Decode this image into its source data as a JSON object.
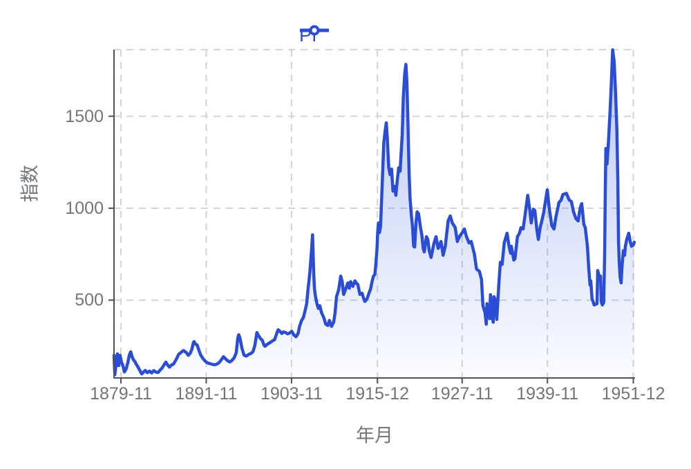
{
  "legend": {
    "label": "PI"
  },
  "colors": {
    "line": "#2B4DD6",
    "legend_text": "#2B4DD6",
    "area_top": "rgba(62,100,226,0.36)",
    "area_bottom": "rgba(62,100,226,0.02)",
    "grid": "#D3D4D6",
    "axis": "#4E5158",
    "tick_text": "#71757A",
    "background": "#FFFFFF"
  },
  "chart_data": {
    "type": "line",
    "title": "",
    "xlabel": "年月",
    "ylabel": "指数",
    "legend_position": "top-center",
    "grid_dashed": true,
    "area_fill": true,
    "x_ticks": [
      "1879-11",
      "1891-11",
      "1903-11",
      "1915-12",
      "1927-11",
      "1939-11",
      "1951-12"
    ],
    "x_tick_years": [
      1879.875,
      1891.875,
      1903.875,
      1915.958,
      1927.875,
      1939.875,
      1951.958
    ],
    "y_ticks": [
      500,
      1000,
      1500
    ],
    "x_range": [
      1878.9,
      1952.2
    ],
    "y_range": [
      77,
      1862
    ],
    "series": [
      {
        "name": "PI",
        "points": [
          [
            1878.9,
            200
          ],
          [
            1879.02,
            95
          ],
          [
            1879.2,
            160
          ],
          [
            1879.38,
            208
          ],
          [
            1879.55,
            144
          ],
          [
            1879.75,
            200
          ],
          [
            1879.95,
            163
          ],
          [
            1880.15,
            144
          ],
          [
            1880.36,
            110
          ],
          [
            1880.6,
            125
          ],
          [
            1880.85,
            162
          ],
          [
            1881.05,
            200
          ],
          [
            1881.25,
            219
          ],
          [
            1881.45,
            192
          ],
          [
            1881.65,
            175
          ],
          [
            1881.85,
            166
          ],
          [
            1882.05,
            150
          ],
          [
            1882.25,
            138
          ],
          [
            1882.5,
            120
          ],
          [
            1882.8,
            99
          ],
          [
            1883.05,
            109
          ],
          [
            1883.3,
            118
          ],
          [
            1883.6,
            106
          ],
          [
            1883.9,
            114
          ],
          [
            1884.2,
            104
          ],
          [
            1884.5,
            117
          ],
          [
            1884.8,
            109
          ],
          [
            1885.1,
            107
          ],
          [
            1885.4,
            121
          ],
          [
            1885.7,
            133
          ],
          [
            1886.0,
            152
          ],
          [
            1886.2,
            163
          ],
          [
            1886.45,
            147
          ],
          [
            1886.7,
            136
          ],
          [
            1887.0,
            148
          ],
          [
            1887.25,
            152
          ],
          [
            1887.5,
            168
          ],
          [
            1887.75,
            185
          ],
          [
            1888.0,
            206
          ],
          [
            1888.25,
            213
          ],
          [
            1888.5,
            222
          ],
          [
            1888.7,
            226
          ],
          [
            1888.9,
            220
          ],
          [
            1889.1,
            214
          ],
          [
            1889.35,
            200
          ],
          [
            1889.6,
            210
          ],
          [
            1889.85,
            232
          ],
          [
            1890.05,
            267
          ],
          [
            1890.15,
            275
          ],
          [
            1890.35,
            262
          ],
          [
            1890.6,
            256
          ],
          [
            1890.85,
            227
          ],
          [
            1891.1,
            201
          ],
          [
            1891.35,
            186
          ],
          [
            1891.6,
            174
          ],
          [
            1891.9,
            163
          ],
          [
            1892.2,
            157
          ],
          [
            1892.5,
            154
          ],
          [
            1892.8,
            150
          ],
          [
            1893.1,
            149
          ],
          [
            1893.4,
            153
          ],
          [
            1893.7,
            161
          ],
          [
            1894.0,
            176
          ],
          [
            1894.3,
            193
          ],
          [
            1894.6,
            181
          ],
          [
            1894.9,
            170
          ],
          [
            1895.2,
            164
          ],
          [
            1895.5,
            173
          ],
          [
            1895.8,
            186
          ],
          [
            1896.1,
            214
          ],
          [
            1896.3,
            292
          ],
          [
            1896.45,
            312
          ],
          [
            1896.6,
            296
          ],
          [
            1896.9,
            238
          ],
          [
            1897.2,
            201
          ],
          [
            1897.5,
            196
          ],
          [
            1897.9,
            206
          ],
          [
            1898.2,
            211
          ],
          [
            1898.45,
            220
          ],
          [
            1898.7,
            252
          ],
          [
            1899.0,
            324
          ],
          [
            1899.2,
            309
          ],
          [
            1899.5,
            291
          ],
          [
            1899.75,
            282
          ],
          [
            1900.0,
            256
          ],
          [
            1900.15,
            249
          ],
          [
            1900.4,
            259
          ],
          [
            1900.8,
            268
          ],
          [
            1901.1,
            276
          ],
          [
            1901.5,
            286
          ],
          [
            1901.8,
            321
          ],
          [
            1902.0,
            339
          ],
          [
            1902.25,
            331
          ],
          [
            1902.5,
            319
          ],
          [
            1902.75,
            327
          ],
          [
            1903.0,
            325
          ],
          [
            1903.3,
            317
          ],
          [
            1903.6,
            321
          ],
          [
            1903.9,
            331
          ],
          [
            1904.2,
            311
          ],
          [
            1904.5,
            301
          ],
          [
            1904.8,
            319
          ],
          [
            1905.0,
            357
          ],
          [
            1905.3,
            391
          ],
          [
            1905.55,
            406
          ],
          [
            1905.8,
            446
          ],
          [
            1906.0,
            481
          ],
          [
            1906.2,
            560
          ],
          [
            1906.45,
            650
          ],
          [
            1906.7,
            780
          ],
          [
            1906.83,
            855
          ],
          [
            1907.0,
            640
          ],
          [
            1907.1,
            560
          ],
          [
            1907.25,
            519
          ],
          [
            1907.45,
            481
          ],
          [
            1907.65,
            455
          ],
          [
            1907.85,
            470
          ],
          [
            1908.1,
            431
          ],
          [
            1908.4,
            406
          ],
          [
            1908.7,
            369
          ],
          [
            1909.0,
            362
          ],
          [
            1909.2,
            390
          ],
          [
            1909.5,
            357
          ],
          [
            1909.8,
            381
          ],
          [
            1910.0,
            431
          ],
          [
            1910.2,
            519
          ],
          [
            1910.5,
            556
          ],
          [
            1910.8,
            631
          ],
          [
            1911.0,
            601
          ],
          [
            1911.2,
            531
          ],
          [
            1911.5,
            561
          ],
          [
            1911.8,
            594
          ],
          [
            1912.0,
            565
          ],
          [
            1912.2,
            601
          ],
          [
            1912.5,
            575
          ],
          [
            1912.8,
            605
          ],
          [
            1913.0,
            591
          ],
          [
            1913.2,
            586
          ],
          [
            1913.5,
            531
          ],
          [
            1913.8,
            538
          ],
          [
            1914.0,
            511
          ],
          [
            1914.2,
            493
          ],
          [
            1914.5,
            508
          ],
          [
            1914.8,
            541
          ],
          [
            1915.0,
            561
          ],
          [
            1915.2,
            601
          ],
          [
            1915.4,
            631
          ],
          [
            1915.6,
            640
          ],
          [
            1915.75,
            706
          ],
          [
            1915.9,
            781
          ],
          [
            1916.0,
            872
          ],
          [
            1916.1,
            920
          ],
          [
            1916.25,
            868
          ],
          [
            1916.4,
            901
          ],
          [
            1916.6,
            1100
          ],
          [
            1916.85,
            1355
          ],
          [
            1917.05,
            1421
          ],
          [
            1917.2,
            1464
          ],
          [
            1917.35,
            1381
          ],
          [
            1917.55,
            1220
          ],
          [
            1917.75,
            1182
          ],
          [
            1917.95,
            1213
          ],
          [
            1918.15,
            1093
          ],
          [
            1918.35,
            1119
          ],
          [
            1918.55,
            1070
          ],
          [
            1918.75,
            1151
          ],
          [
            1918.95,
            1220
          ],
          [
            1919.15,
            1201
          ],
          [
            1919.45,
            1400
          ],
          [
            1919.6,
            1606
          ],
          [
            1919.8,
            1730
          ],
          [
            1919.96,
            1782
          ],
          [
            1920.1,
            1688
          ],
          [
            1920.25,
            1475
          ],
          [
            1920.42,
            1182
          ],
          [
            1920.55,
            1055
          ],
          [
            1920.74,
            958
          ],
          [
            1920.9,
            901
          ],
          [
            1921.05,
            793
          ],
          [
            1921.2,
            789
          ],
          [
            1921.4,
            930
          ],
          [
            1921.55,
            980
          ],
          [
            1921.75,
            969
          ],
          [
            1922.0,
            900
          ],
          [
            1922.2,
            856
          ],
          [
            1922.4,
            781
          ],
          [
            1922.55,
            762
          ],
          [
            1922.85,
            845
          ],
          [
            1923.05,
            830
          ],
          [
            1923.25,
            768
          ],
          [
            1923.5,
            732
          ],
          [
            1923.9,
            807
          ],
          [
            1924.2,
            845
          ],
          [
            1924.5,
            781
          ],
          [
            1924.9,
            819
          ],
          [
            1925.2,
            744
          ],
          [
            1925.5,
            793
          ],
          [
            1925.9,
            931
          ],
          [
            1926.2,
            958
          ],
          [
            1926.5,
            920
          ],
          [
            1926.9,
            894
          ],
          [
            1927.2,
            819
          ],
          [
            1927.5,
            845
          ],
          [
            1927.95,
            871
          ],
          [
            1928.2,
            887
          ],
          [
            1928.45,
            849
          ],
          [
            1928.85,
            811
          ],
          [
            1929.15,
            819
          ],
          [
            1929.6,
            751
          ],
          [
            1929.9,
            669
          ],
          [
            1930.3,
            657
          ],
          [
            1930.6,
            613
          ],
          [
            1930.8,
            470
          ],
          [
            1931.1,
            431
          ],
          [
            1931.27,
            369
          ],
          [
            1931.37,
            481
          ],
          [
            1931.76,
            399
          ],
          [
            1931.86,
            530
          ],
          [
            1932.05,
            425
          ],
          [
            1932.25,
            380
          ],
          [
            1932.35,
            519
          ],
          [
            1932.55,
            500
          ],
          [
            1932.75,
            395
          ],
          [
            1933.05,
            594
          ],
          [
            1933.25,
            706
          ],
          [
            1933.5,
            694
          ],
          [
            1933.8,
            811
          ],
          [
            1934.2,
            864
          ],
          [
            1934.5,
            789
          ],
          [
            1934.7,
            755
          ],
          [
            1934.8,
            793
          ],
          [
            1935.15,
            718
          ],
          [
            1935.3,
            725
          ],
          [
            1935.65,
            845
          ],
          [
            1935.95,
            864
          ],
          [
            1936.15,
            894
          ],
          [
            1936.45,
            887
          ],
          [
            1936.75,
            969
          ],
          [
            1937.1,
            1070
          ],
          [
            1937.4,
            988
          ],
          [
            1937.6,
            920
          ],
          [
            1937.9,
            995
          ],
          [
            1938.1,
            988
          ],
          [
            1938.4,
            881
          ],
          [
            1938.6,
            830
          ],
          [
            1938.85,
            894
          ],
          [
            1939.05,
            924
          ],
          [
            1939.35,
            976
          ],
          [
            1939.65,
            1050
          ],
          [
            1939.85,
            1100
          ],
          [
            1940.15,
            995
          ],
          [
            1940.5,
            905
          ],
          [
            1940.8,
            887
          ],
          [
            1941.1,
            958
          ],
          [
            1941.5,
            1031
          ],
          [
            1941.8,
            1044
          ],
          [
            1942.05,
            1074
          ],
          [
            1942.55,
            1081
          ],
          [
            1942.95,
            1044
          ],
          [
            1943.25,
            1036
          ],
          [
            1943.55,
            980
          ],
          [
            1943.9,
            943
          ],
          [
            1944.2,
            931
          ],
          [
            1944.5,
            1006
          ],
          [
            1944.7,
            1025
          ],
          [
            1945.0,
            913
          ],
          [
            1945.2,
            894
          ],
          [
            1945.5,
            793
          ],
          [
            1945.7,
            669
          ],
          [
            1945.87,
            582
          ],
          [
            1945.97,
            605
          ],
          [
            1946.15,
            508
          ],
          [
            1946.45,
            474
          ],
          [
            1946.85,
            481
          ],
          [
            1946.95,
            661
          ],
          [
            1947.15,
            631
          ],
          [
            1947.35,
            631
          ],
          [
            1947.45,
            493
          ],
          [
            1947.6,
            474
          ],
          [
            1947.8,
            489
          ],
          [
            1947.92,
            744
          ],
          [
            1948.02,
            1100
          ],
          [
            1948.1,
            1325
          ],
          [
            1948.25,
            1240
          ],
          [
            1948.45,
            1352
          ],
          [
            1948.65,
            1500
          ],
          [
            1948.85,
            1660
          ],
          [
            1949.05,
            1861
          ],
          [
            1949.25,
            1800
          ],
          [
            1949.45,
            1640
          ],
          [
            1949.64,
            1430
          ],
          [
            1949.78,
            1150
          ],
          [
            1949.88,
            820
          ],
          [
            1949.98,
            700
          ],
          [
            1950.1,
            625
          ],
          [
            1950.25,
            594
          ],
          [
            1950.36,
            680
          ],
          [
            1950.55,
            769
          ],
          [
            1950.73,
            744
          ],
          [
            1950.84,
            793
          ],
          [
            1951.03,
            830
          ],
          [
            1951.32,
            864
          ],
          [
            1951.52,
            819
          ],
          [
            1951.71,
            793
          ],
          [
            1951.96,
            800
          ],
          [
            1952.1,
            815
          ]
        ]
      }
    ]
  }
}
